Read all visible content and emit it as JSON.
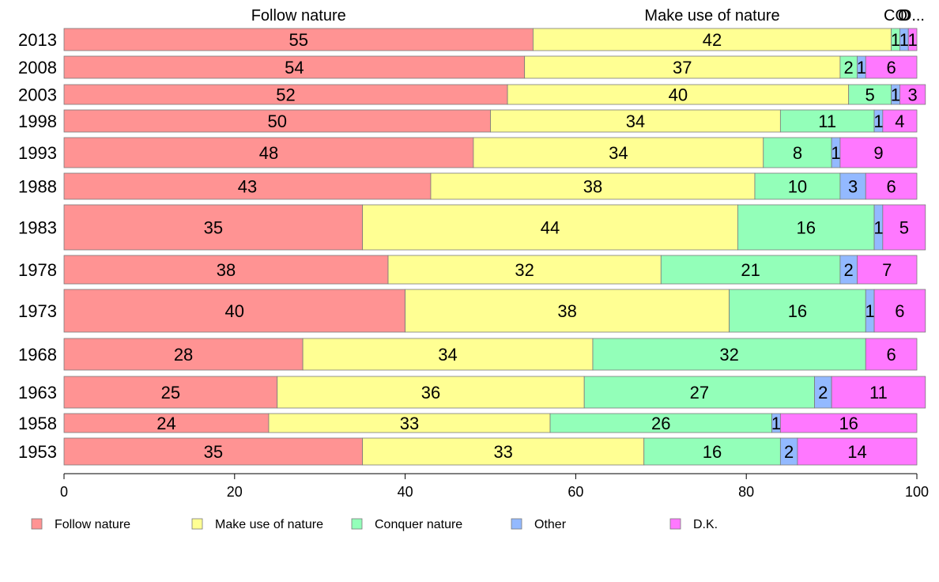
{
  "chart_data": {
    "type": "bar",
    "orientation": "horizontal",
    "stacked": true,
    "categories": [
      "2013",
      "2008",
      "2003",
      "1998",
      "1993",
      "1988",
      "1983",
      "1978",
      "1973",
      "1968",
      "1963",
      "1958",
      "1953"
    ],
    "series": [
      {
        "name": "Follow nature",
        "color": "#ff9393",
        "values": [
          55,
          54,
          52,
          50,
          48,
          43,
          35,
          38,
          40,
          28,
          25,
          24,
          35
        ]
      },
      {
        "name": "Make use of nature",
        "color": "#ffff93",
        "values": [
          42,
          37,
          40,
          34,
          34,
          38,
          44,
          32,
          38,
          34,
          36,
          33,
          33
        ]
      },
      {
        "name": "Conquer nature",
        "color": "#93ffb9",
        "values": [
          1,
          2,
          5,
          11,
          8,
          10,
          16,
          21,
          16,
          32,
          27,
          26,
          16
        ]
      },
      {
        "name": "Other",
        "color": "#93b9ff",
        "values": [
          1,
          1,
          1,
          1,
          1,
          3,
          1,
          2,
          1,
          0,
          2,
          1,
          2
        ]
      },
      {
        "name": "D.K.",
        "color": "#ff78ff",
        "values": [
          1,
          6,
          3,
          4,
          9,
          6,
          5,
          7,
          6,
          6,
          11,
          16,
          14
        ]
      }
    ],
    "top_labels": [
      "Follow nature",
      "Make use of nature",
      "CO",
      "O",
      "D..."
    ],
    "x_ticks": [
      "0",
      "20",
      "40",
      "60",
      "80",
      "100"
    ],
    "xlim": [
      0,
      100
    ],
    "legend_placement": "bottom",
    "grid": false
  }
}
